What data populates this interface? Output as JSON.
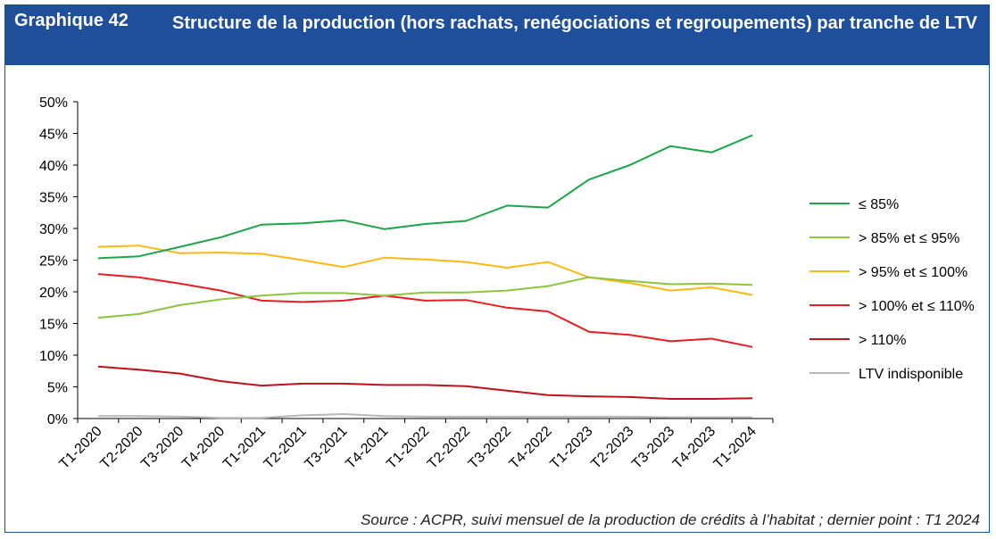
{
  "header": {
    "number": "Graphique 42",
    "title": "Structure de la production (hors rachats, renégociations et regroupements) par tranche de LTV"
  },
  "source": "Source : ACPR, suivi mensuel de la production de crédits à l’habitat ; dernier point : T1 2024",
  "chart_data": {
    "type": "line",
    "title": "Structure de la production (hors rachats, renégociations et regroupements) par tranche de LTV",
    "xlabel": "",
    "ylabel": "",
    "ylim": [
      0,
      50
    ],
    "yticks": [
      "0%",
      "5%",
      "10%",
      "15%",
      "20%",
      "25%",
      "30%",
      "35%",
      "40%",
      "45%",
      "50%"
    ],
    "grid": false,
    "legend_position": "right",
    "categories": [
      "T1-2020",
      "T2-2020",
      "T3-2020",
      "T4-2020",
      "T1-2021",
      "T2-2021",
      "T3-2021",
      "T4-2021",
      "T1-2022",
      "T2-2022",
      "T3-2022",
      "T4-2022",
      "T1-2023",
      "T2-2023",
      "T3-2023",
      "T4-2023",
      "T1-2024"
    ],
    "series": [
      {
        "name": "≤ 85%",
        "color": "#1aa748",
        "values": [
          25.3,
          25.6,
          27.1,
          28.6,
          30.6,
          30.8,
          31.3,
          29.9,
          30.7,
          31.2,
          33.6,
          33.3,
          37.7,
          40.0,
          43.0,
          42.0,
          44.7
        ]
      },
      {
        "name": "> 85% et ≤ 95%",
        "color": "#8cc63e",
        "values": [
          15.9,
          16.5,
          17.9,
          18.8,
          19.4,
          19.8,
          19.8,
          19.4,
          19.9,
          19.9,
          20.2,
          20.9,
          22.3,
          21.7,
          21.2,
          21.3,
          21.1
        ]
      },
      {
        "name": "> 95% et ≤ 100%",
        "color": "#fdb913",
        "values": [
          27.1,
          27.3,
          26.1,
          26.2,
          26.0,
          25.0,
          23.9,
          25.4,
          25.1,
          24.7,
          23.8,
          24.7,
          22.3,
          21.4,
          20.2,
          20.7,
          19.5
        ]
      },
      {
        "name": "> 100% et ≤ 110%",
        "color": "#ec1c24",
        "values": [
          22.8,
          22.3,
          21.3,
          20.2,
          18.6,
          18.4,
          18.6,
          19.4,
          18.6,
          18.7,
          17.5,
          16.9,
          13.7,
          13.2,
          12.2,
          12.6,
          11.3
        ]
      },
      {
        "name": "> 110%",
        "color": "#c1121b",
        "values": [
          8.2,
          7.7,
          7.1,
          5.9,
          5.2,
          5.5,
          5.5,
          5.3,
          5.3,
          5.1,
          4.4,
          3.7,
          3.5,
          3.4,
          3.1,
          3.1,
          3.2
        ]
      },
      {
        "name": "LTV indisponible",
        "color": "#b8b8b8",
        "values": [
          0.4,
          0.4,
          0.3,
          0.1,
          0.1,
          0.5,
          0.7,
          0.4,
          0.3,
          0.3,
          0.3,
          0.3,
          0.3,
          0.3,
          0.2,
          0.2,
          0.2
        ]
      }
    ]
  }
}
